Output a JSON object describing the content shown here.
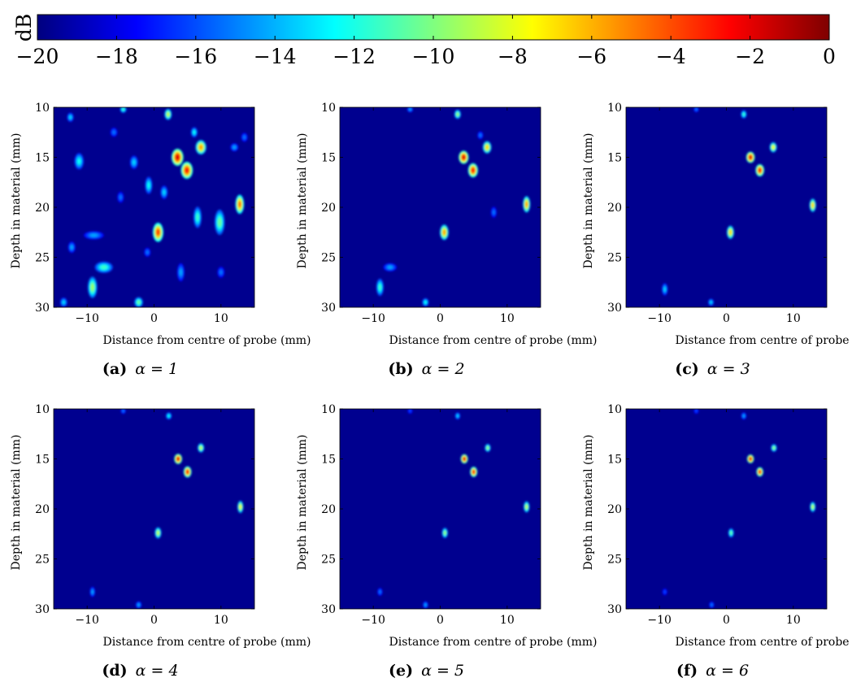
{
  "colorbar": {
    "unit_label": "dB",
    "ticks": [
      "−20",
      "−18",
      "−16",
      "−14",
      "−12",
      "−10",
      "−8",
      "−6",
      "−4",
      "−2",
      "0"
    ],
    "range": [
      -20,
      0
    ],
    "colormap": "jet",
    "colors": [
      "#00007f",
      "#0000ff",
      "#00ffff",
      "#ffff00",
      "#ff0000",
      "#7f0000"
    ]
  },
  "background_color": "#00008f",
  "chart_data": [
    {
      "type": "heatmap",
      "caption_id": "(a)",
      "caption_alpha": "α = 1",
      "xlabel": "Distance from centre of probe (mm)",
      "ylabel": "Depth in material (mm)",
      "xlim": [
        -15,
        15
      ],
      "ylim": [
        30,
        10
      ],
      "zlim": [
        -20,
        0
      ],
      "xticks": [
        "−10",
        "0",
        "10"
      ],
      "xtick_values": [
        -10,
        0,
        10
      ],
      "yticks": [
        "10",
        "15",
        "20",
        "25",
        "30"
      ],
      "ytick_values": [
        10,
        15,
        20,
        25,
        30
      ],
      "blobs": [
        {
          "x": 2.1,
          "y": 10.7,
          "v": -8,
          "w": 0.6,
          "h": 0.8
        },
        {
          "x": 3.5,
          "y": 15.0,
          "v": -1,
          "w": 1.3,
          "h": 1.4
        },
        {
          "x": 4.9,
          "y": 16.3,
          "v": -2,
          "w": 1.3,
          "h": 1.4
        },
        {
          "x": 7.0,
          "y": 14.0,
          "v": -5,
          "w": 1.1,
          "h": 1.1
        },
        {
          "x": 12.8,
          "y": 19.7,
          "v": -4,
          "w": 0.8,
          "h": 1.6
        },
        {
          "x": 0.6,
          "y": 22.5,
          "v": -3,
          "w": 1.1,
          "h": 1.6
        },
        {
          "x": -9.2,
          "y": 28.0,
          "v": -9,
          "w": 0.9,
          "h": 1.8
        },
        {
          "x": -7.5,
          "y": 26.0,
          "v": -11,
          "w": 2.2,
          "h": 0.8
        },
        {
          "x": -2.3,
          "y": 29.5,
          "v": -10,
          "w": 0.8,
          "h": 0.7
        },
        {
          "x": -11.2,
          "y": 15.4,
          "v": -12,
          "w": 0.9,
          "h": 1.3
        },
        {
          "x": -12.5,
          "y": 11.0,
          "v": -13,
          "w": 0.5,
          "h": 0.6
        },
        {
          "x": -4.6,
          "y": 10.2,
          "v": -11,
          "w": 0.5,
          "h": 0.4
        },
        {
          "x": 9.8,
          "y": 21.5,
          "v": -10,
          "w": 1.0,
          "h": 2.2
        },
        {
          "x": 6.5,
          "y": 21.0,
          "v": -11,
          "w": 0.7,
          "h": 1.8
        },
        {
          "x": -3.0,
          "y": 15.5,
          "v": -13,
          "w": 0.7,
          "h": 1.0
        },
        {
          "x": -0.8,
          "y": 17.8,
          "v": -12,
          "w": 0.6,
          "h": 1.4
        },
        {
          "x": 1.5,
          "y": 18.5,
          "v": -13,
          "w": 0.6,
          "h": 1.0
        },
        {
          "x": 6.0,
          "y": 12.5,
          "v": -12,
          "w": 0.5,
          "h": 0.7
        },
        {
          "x": 12.0,
          "y": 14.0,
          "v": -14,
          "w": 0.7,
          "h": 0.5
        },
        {
          "x": -9.0,
          "y": 22.8,
          "v": -14,
          "w": 2.5,
          "h": 0.5
        },
        {
          "x": -12.3,
          "y": 24.0,
          "v": -14,
          "w": 0.6,
          "h": 0.8
        },
        {
          "x": 4.0,
          "y": 26.5,
          "v": -14,
          "w": 0.6,
          "h": 1.5
        },
        {
          "x": -13.5,
          "y": 29.5,
          "v": -13,
          "w": 0.6,
          "h": 0.6
        },
        {
          "x": -6.0,
          "y": 12.5,
          "v": -15,
          "w": 0.6,
          "h": 0.6
        },
        {
          "x": 10.0,
          "y": 26.5,
          "v": -15,
          "w": 0.6,
          "h": 0.8
        },
        {
          "x": -5.0,
          "y": 19.0,
          "v": -15,
          "w": 0.5,
          "h": 0.8
        },
        {
          "x": 13.5,
          "y": 13.0,
          "v": -15,
          "w": 0.5,
          "h": 0.6
        },
        {
          "x": -1.0,
          "y": 24.5,
          "v": -15,
          "w": 0.5,
          "h": 0.6
        }
      ]
    },
    {
      "type": "heatmap",
      "caption_id": "(b)",
      "caption_alpha": "α = 2",
      "xlabel": "Distance from centre of probe (mm)",
      "ylabel": "Depth in material (mm)",
      "xlim": [
        -15,
        15
      ],
      "ylim": [
        30,
        10
      ],
      "zlim": [
        -20,
        0
      ],
      "xticks": [
        "−10",
        "0",
        "10"
      ],
      "xtick_values": [
        -10,
        0,
        10
      ],
      "yticks": [
        "10",
        "15",
        "20",
        "25",
        "30"
      ],
      "ytick_values": [
        10,
        15,
        20,
        25,
        30
      ],
      "blobs": [
        {
          "x": 2.6,
          "y": 10.7,
          "v": -9,
          "w": 0.5,
          "h": 0.6
        },
        {
          "x": 3.5,
          "y": 15.0,
          "v": -1,
          "w": 1.0,
          "h": 1.0
        },
        {
          "x": 4.9,
          "y": 16.3,
          "v": -2,
          "w": 1.0,
          "h": 1.1
        },
        {
          "x": 7.0,
          "y": 14.0,
          "v": -6,
          "w": 0.8,
          "h": 0.9
        },
        {
          "x": 12.9,
          "y": 19.7,
          "v": -5,
          "w": 0.6,
          "h": 1.3
        },
        {
          "x": 0.6,
          "y": 22.5,
          "v": -5,
          "w": 0.8,
          "h": 1.2
        },
        {
          "x": -9.0,
          "y": 28.0,
          "v": -11,
          "w": 0.6,
          "h": 1.4
        },
        {
          "x": -7.5,
          "y": 26.0,
          "v": -14,
          "w": 1.5,
          "h": 0.5
        },
        {
          "x": -2.2,
          "y": 29.5,
          "v": -12,
          "w": 0.5,
          "h": 0.5
        },
        {
          "x": -4.5,
          "y": 10.2,
          "v": -14,
          "w": 0.4,
          "h": 0.3
        },
        {
          "x": 6.0,
          "y": 12.8,
          "v": -15,
          "w": 0.4,
          "h": 0.5
        },
        {
          "x": 8.0,
          "y": 20.5,
          "v": -15,
          "w": 0.4,
          "h": 0.8
        }
      ]
    },
    {
      "type": "heatmap",
      "caption_id": "(c)",
      "caption_alpha": "α = 3",
      "xlabel": "Distance from centre of probe (mm)",
      "ylabel": "Depth in material (mm)",
      "xlim": [
        -15,
        15
      ],
      "ylim": [
        30,
        10
      ],
      "zlim": [
        -20,
        0
      ],
      "xticks": [
        "−10",
        "0",
        "10"
      ],
      "xtick_values": [
        -10,
        0,
        10
      ],
      "yticks": [
        "10",
        "15",
        "20",
        "25",
        "30"
      ],
      "ytick_values": [
        10,
        15,
        20,
        25,
        30
      ],
      "blobs": [
        {
          "x": 2.6,
          "y": 10.7,
          "v": -11,
          "w": 0.4,
          "h": 0.5
        },
        {
          "x": 3.6,
          "y": 15.0,
          "v": -1,
          "w": 0.8,
          "h": 0.8
        },
        {
          "x": 5.0,
          "y": 16.3,
          "v": -2,
          "w": 0.8,
          "h": 0.9
        },
        {
          "x": 7.0,
          "y": 14.0,
          "v": -7,
          "w": 0.6,
          "h": 0.7
        },
        {
          "x": 12.9,
          "y": 19.8,
          "v": -6,
          "w": 0.5,
          "h": 1.0
        },
        {
          "x": 0.6,
          "y": 22.5,
          "v": -6,
          "w": 0.6,
          "h": 1.0
        },
        {
          "x": -9.2,
          "y": 28.2,
          "v": -13,
          "w": 0.4,
          "h": 0.9
        },
        {
          "x": -2.3,
          "y": 29.5,
          "v": -13,
          "w": 0.4,
          "h": 0.4
        },
        {
          "x": -4.5,
          "y": 10.2,
          "v": -15,
          "w": 0.3,
          "h": 0.3
        }
      ]
    },
    {
      "type": "heatmap",
      "caption_id": "(d)",
      "caption_alpha": "α = 4",
      "xlabel": "Distance from centre of probe (mm)",
      "ylabel": "Depth in material (mm)",
      "xlim": [
        -15,
        15
      ],
      "ylim": [
        30,
        10
      ],
      "zlim": [
        -20,
        0
      ],
      "xticks": [
        "−10",
        "0",
        "10"
      ],
      "xtick_values": [
        -10,
        0,
        10
      ],
      "yticks": [
        "10",
        "15",
        "20",
        "25",
        "30"
      ],
      "ytick_values": [
        10,
        15,
        20,
        25,
        30
      ],
      "blobs": [
        {
          "x": 2.2,
          "y": 10.7,
          "v": -12,
          "w": 0.4,
          "h": 0.4
        },
        {
          "x": 3.6,
          "y": 15.0,
          "v": -1,
          "w": 0.7,
          "h": 0.7
        },
        {
          "x": 5.0,
          "y": 16.3,
          "v": -2,
          "w": 0.7,
          "h": 0.8
        },
        {
          "x": 7.0,
          "y": 13.9,
          "v": -8,
          "w": 0.5,
          "h": 0.6
        },
        {
          "x": 12.9,
          "y": 19.8,
          "v": -7,
          "w": 0.4,
          "h": 0.9
        },
        {
          "x": 0.6,
          "y": 22.4,
          "v": -8,
          "w": 0.5,
          "h": 0.8
        },
        {
          "x": -9.2,
          "y": 28.3,
          "v": -14,
          "w": 0.3,
          "h": 0.7
        },
        {
          "x": -2.3,
          "y": 29.6,
          "v": -14,
          "w": 0.4,
          "h": 0.4
        },
        {
          "x": -4.6,
          "y": 10.2,
          "v": -15,
          "w": 0.3,
          "h": 0.3
        }
      ]
    },
    {
      "type": "heatmap",
      "caption_id": "(e)",
      "caption_alpha": "α = 5",
      "xlabel": "Distance from centre of probe (mm)",
      "ylabel": "Depth in material (mm)",
      "xlim": [
        -15,
        15
      ],
      "ylim": [
        30,
        10
      ],
      "zlim": [
        -20,
        0
      ],
      "xticks": [
        "−10",
        "0",
        "10"
      ],
      "xtick_values": [
        -10,
        0,
        10
      ],
      "yticks": [
        "10",
        "15",
        "20",
        "25",
        "30"
      ],
      "ytick_values": [
        10,
        15,
        20,
        25,
        30
      ],
      "blobs": [
        {
          "x": 2.6,
          "y": 10.7,
          "v": -13,
          "w": 0.3,
          "h": 0.4
        },
        {
          "x": 3.6,
          "y": 15.0,
          "v": -1,
          "w": 0.6,
          "h": 0.6
        },
        {
          "x": 5.0,
          "y": 16.3,
          "v": -2,
          "w": 0.6,
          "h": 0.7
        },
        {
          "x": 7.1,
          "y": 13.9,
          "v": -9,
          "w": 0.4,
          "h": 0.5
        },
        {
          "x": 12.9,
          "y": 19.8,
          "v": -8,
          "w": 0.4,
          "h": 0.8
        },
        {
          "x": 0.7,
          "y": 22.4,
          "v": -9,
          "w": 0.4,
          "h": 0.7
        },
        {
          "x": -9.0,
          "y": 28.3,
          "v": -15,
          "w": 0.3,
          "h": 0.5
        },
        {
          "x": -2.2,
          "y": 29.6,
          "v": -14,
          "w": 0.3,
          "h": 0.4
        },
        {
          "x": -4.5,
          "y": 10.2,
          "v": -16,
          "w": 0.3,
          "h": 0.3
        }
      ]
    },
    {
      "type": "heatmap",
      "caption_id": "(f)",
      "caption_alpha": "α = 6",
      "xlabel": "Distance from centre of probe (mm)",
      "ylabel": "Depth in material (mm)",
      "xlim": [
        -15,
        15
      ],
      "ylim": [
        30,
        10
      ],
      "zlim": [
        -20,
        0
      ],
      "xticks": [
        "−10",
        "0",
        "10"
      ],
      "xtick_values": [
        -10,
        0,
        10
      ],
      "yticks": [
        "10",
        "15",
        "20",
        "25",
        "30"
      ],
      "ytick_values": [
        10,
        15,
        20,
        25,
        30
      ],
      "blobs": [
        {
          "x": 2.6,
          "y": 10.7,
          "v": -14,
          "w": 0.3,
          "h": 0.4
        },
        {
          "x": 3.6,
          "y": 15.0,
          "v": -1,
          "w": 0.55,
          "h": 0.55
        },
        {
          "x": 5.0,
          "y": 16.3,
          "v": -2,
          "w": 0.55,
          "h": 0.6
        },
        {
          "x": 7.1,
          "y": 13.9,
          "v": -9,
          "w": 0.4,
          "h": 0.45
        },
        {
          "x": 12.9,
          "y": 19.8,
          "v": -8,
          "w": 0.35,
          "h": 0.7
        },
        {
          "x": 0.7,
          "y": 22.4,
          "v": -10,
          "w": 0.35,
          "h": 0.6
        },
        {
          "x": -9.2,
          "y": 28.3,
          "v": -16,
          "w": 0.3,
          "h": 0.4
        },
        {
          "x": -2.2,
          "y": 29.6,
          "v": -15,
          "w": 0.3,
          "h": 0.35
        },
        {
          "x": -4.5,
          "y": 10.2,
          "v": -16,
          "w": 0.3,
          "h": 0.3
        }
      ]
    }
  ]
}
